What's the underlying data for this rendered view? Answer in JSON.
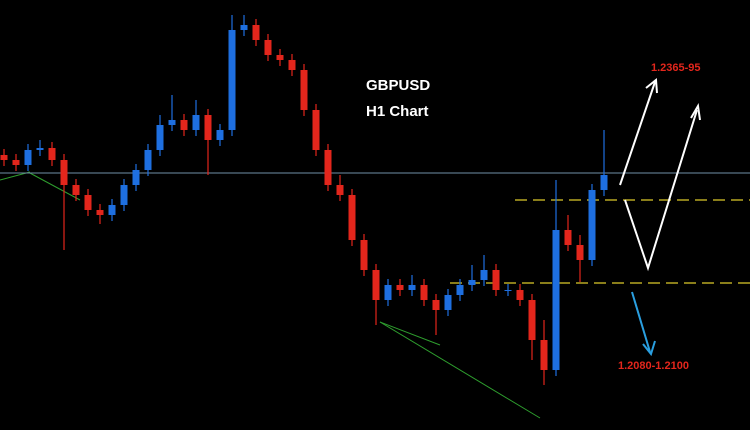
{
  "chart_data": {
    "type": "candlestick",
    "title": "GBPUSD",
    "subtitle": "H1 Chart",
    "annotations": [
      "1.2365-95",
      "1.2080-1.2100"
    ],
    "up_color": "#1e6fe0",
    "down_color": "#e3261c",
    "ylim": [
      1.2003,
      1.2433
    ],
    "levels": [
      {
        "value": 1.226,
        "color": "#6f8fa8",
        "style": "solid"
      },
      {
        "value": 1.2233,
        "color": "#b8a823",
        "style": "dashed"
      },
      {
        "value": 1.215,
        "color": "#b8a823",
        "style": "dashed"
      }
    ],
    "open": [
      1.2278,
      1.2273,
      1.2268,
      1.2283,
      1.2285,
      1.2273,
      1.2248,
      1.2238,
      1.2223,
      1.2218,
      1.2228,
      1.2248,
      1.2263,
      1.2283,
      1.2308,
      1.2313,
      1.2303,
      1.2318,
      1.2293,
      1.2303,
      1.2403,
      1.2408,
      1.2393,
      1.2378,
      1.2373,
      1.2363,
      1.2323,
      1.2283,
      1.2248,
      1.2238,
      1.2193,
      1.2163,
      1.2133,
      1.2148,
      1.2143,
      1.2148,
      1.2133,
      1.2123,
      1.2138,
      1.2148,
      1.2153,
      1.2163,
      1.2143,
      1.2143,
      1.2133,
      1.2093,
      1.2063,
      1.2203,
      1.2188,
      1.2173,
      1.2243
    ],
    "high": [
      1.2284,
      1.2279,
      1.2289,
      1.2293,
      1.2291,
      1.2279,
      1.2254,
      1.2244,
      1.2229,
      1.2234,
      1.2254,
      1.2269,
      1.2289,
      1.2318,
      1.2338,
      1.2319,
      1.2333,
      1.2324,
      1.2309,
      1.2418,
      1.2418,
      1.2414,
      1.2399,
      1.2384,
      1.2379,
      1.2369,
      1.2329,
      1.2289,
      1.2258,
      1.2244,
      1.2199,
      1.2169,
      1.2154,
      1.2154,
      1.2158,
      1.2154,
      1.2139,
      1.2144,
      1.2154,
      1.2168,
      1.2178,
      1.2169,
      1.2149,
      1.2149,
      1.2139,
      1.2113,
      1.2253,
      1.2218,
      1.2198,
      1.2249,
      1.2303
    ],
    "low": [
      1.2267,
      1.2262,
      1.2262,
      1.2277,
      1.2267,
      1.2183,
      1.2232,
      1.2217,
      1.2209,
      1.2212,
      1.2222,
      1.2242,
      1.2257,
      1.2277,
      1.2302,
      1.2297,
      1.2297,
      1.2258,
      1.2287,
      1.2297,
      1.2397,
      1.2387,
      1.2372,
      1.2367,
      1.2357,
      1.2317,
      1.2277,
      1.2242,
      1.2232,
      1.2187,
      1.2157,
      1.2108,
      1.2127,
      1.2137,
      1.2137,
      1.2127,
      1.2098,
      1.2117,
      1.2132,
      1.2142,
      1.2147,
      1.2137,
      1.2137,
      1.2127,
      1.2073,
      1.2048,
      1.2057,
      1.2182,
      1.2151,
      1.2167,
      1.2237
    ],
    "close": [
      1.2273,
      1.2268,
      1.2283,
      1.2285,
      1.2273,
      1.2248,
      1.2238,
      1.2223,
      1.2218,
      1.2228,
      1.2248,
      1.2263,
      1.2283,
      1.2308,
      1.2313,
      1.2303,
      1.2318,
      1.2293,
      1.2303,
      1.2403,
      1.2408,
      1.2393,
      1.2378,
      1.2373,
      1.2363,
      1.2323,
      1.2283,
      1.2248,
      1.2238,
      1.2193,
      1.2163,
      1.2133,
      1.2148,
      1.2143,
      1.2148,
      1.2133,
      1.2123,
      1.2138,
      1.2148,
      1.2153,
      1.2163,
      1.2143,
      1.2143,
      1.2133,
      1.2093,
      1.2063,
      1.2203,
      1.2188,
      1.2173,
      1.2243,
      1.2258
    ]
  }
}
